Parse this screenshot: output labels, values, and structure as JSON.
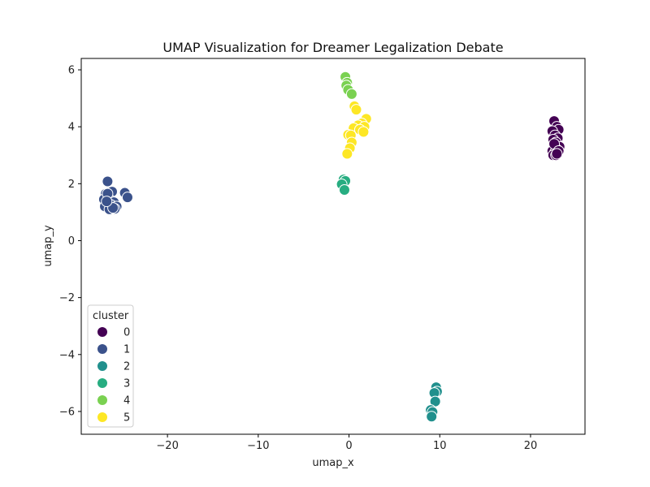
{
  "chart_data": {
    "type": "scatter",
    "title": "UMAP Visualization for Dreamer Legalization Debate",
    "xlabel": "umap_x",
    "ylabel": "umap_y",
    "xlim": [
      -29.5,
      26.0
    ],
    "ylim": [
      -6.8,
      6.4
    ],
    "xticks": [
      -20,
      -10,
      0,
      10,
      20
    ],
    "yticks": [
      -6,
      -4,
      -2,
      0,
      2,
      4,
      6
    ],
    "xtick_labels": [
      "−20",
      "−10",
      "0",
      "10",
      "20"
    ],
    "ytick_labels": [
      "−6",
      "−4",
      "−2",
      "0",
      "2",
      "4",
      "6"
    ],
    "grid": false,
    "legend": {
      "title": "cluster",
      "placement": "lower-left"
    },
    "series": [
      {
        "name": "0",
        "color": "#440154",
        "x": [
          22.6,
          22.9,
          23.1,
          22.4,
          22.7,
          23.0,
          22.5,
          22.8,
          23.2,
          22.6,
          22.9,
          22.4,
          22.7,
          23.0,
          22.5,
          22.8,
          22.6,
          23.1,
          22.9
        ],
        "y": [
          4.2,
          4.0,
          3.9,
          3.85,
          3.7,
          3.6,
          3.55,
          3.45,
          3.3,
          3.25,
          3.2,
          3.15,
          3.1,
          3.05,
          3.0,
          3.0,
          3.4,
          3.15,
          3.05
        ]
      },
      {
        "name": "1",
        "color": "#3b528b",
        "x": [
          -26.6,
          -26.1,
          -26.8,
          -27.0,
          -26.3,
          -25.9,
          -26.5,
          -26.2,
          -26.9,
          -25.6,
          -25.8,
          -26.4,
          -24.7,
          -24.4,
          -26.6,
          -26.0,
          -26.7
        ],
        "y": [
          2.08,
          1.72,
          1.65,
          1.45,
          1.42,
          1.35,
          1.3,
          1.25,
          1.2,
          1.2,
          1.12,
          1.1,
          1.68,
          1.52,
          1.65,
          1.15,
          1.38
        ]
      },
      {
        "name": "2",
        "color": "#21908d",
        "x": [
          9.6,
          9.7,
          9.4,
          9.5,
          9.0,
          9.2,
          9.1
        ],
        "y": [
          -5.15,
          -5.3,
          -5.35,
          -5.65,
          -5.95,
          -6.02,
          -6.18
        ]
      },
      {
        "name": "3",
        "color": "#27ad81",
        "x": [
          -0.6,
          -0.4,
          -0.8,
          -0.5
        ],
        "y": [
          2.15,
          2.1,
          1.98,
          1.78
        ]
      },
      {
        "name": "4",
        "color": "#7ad151",
        "x": [
          -0.4,
          -0.2,
          -0.3,
          -0.1,
          0.3
        ],
        "y": [
          5.75,
          5.55,
          5.45,
          5.3,
          5.15
        ]
      },
      {
        "name": "5",
        "color": "#fde725",
        "x": [
          0.6,
          0.8,
          1.9,
          1.4,
          1.0,
          1.7,
          0.5,
          1.2,
          1.6,
          -0.1,
          0.2,
          0.3,
          0.1,
          -0.2
        ],
        "y": [
          4.72,
          4.6,
          4.28,
          4.12,
          4.05,
          4.0,
          3.95,
          3.9,
          3.82,
          3.72,
          3.7,
          3.45,
          3.25,
          3.05
        ]
      }
    ]
  }
}
